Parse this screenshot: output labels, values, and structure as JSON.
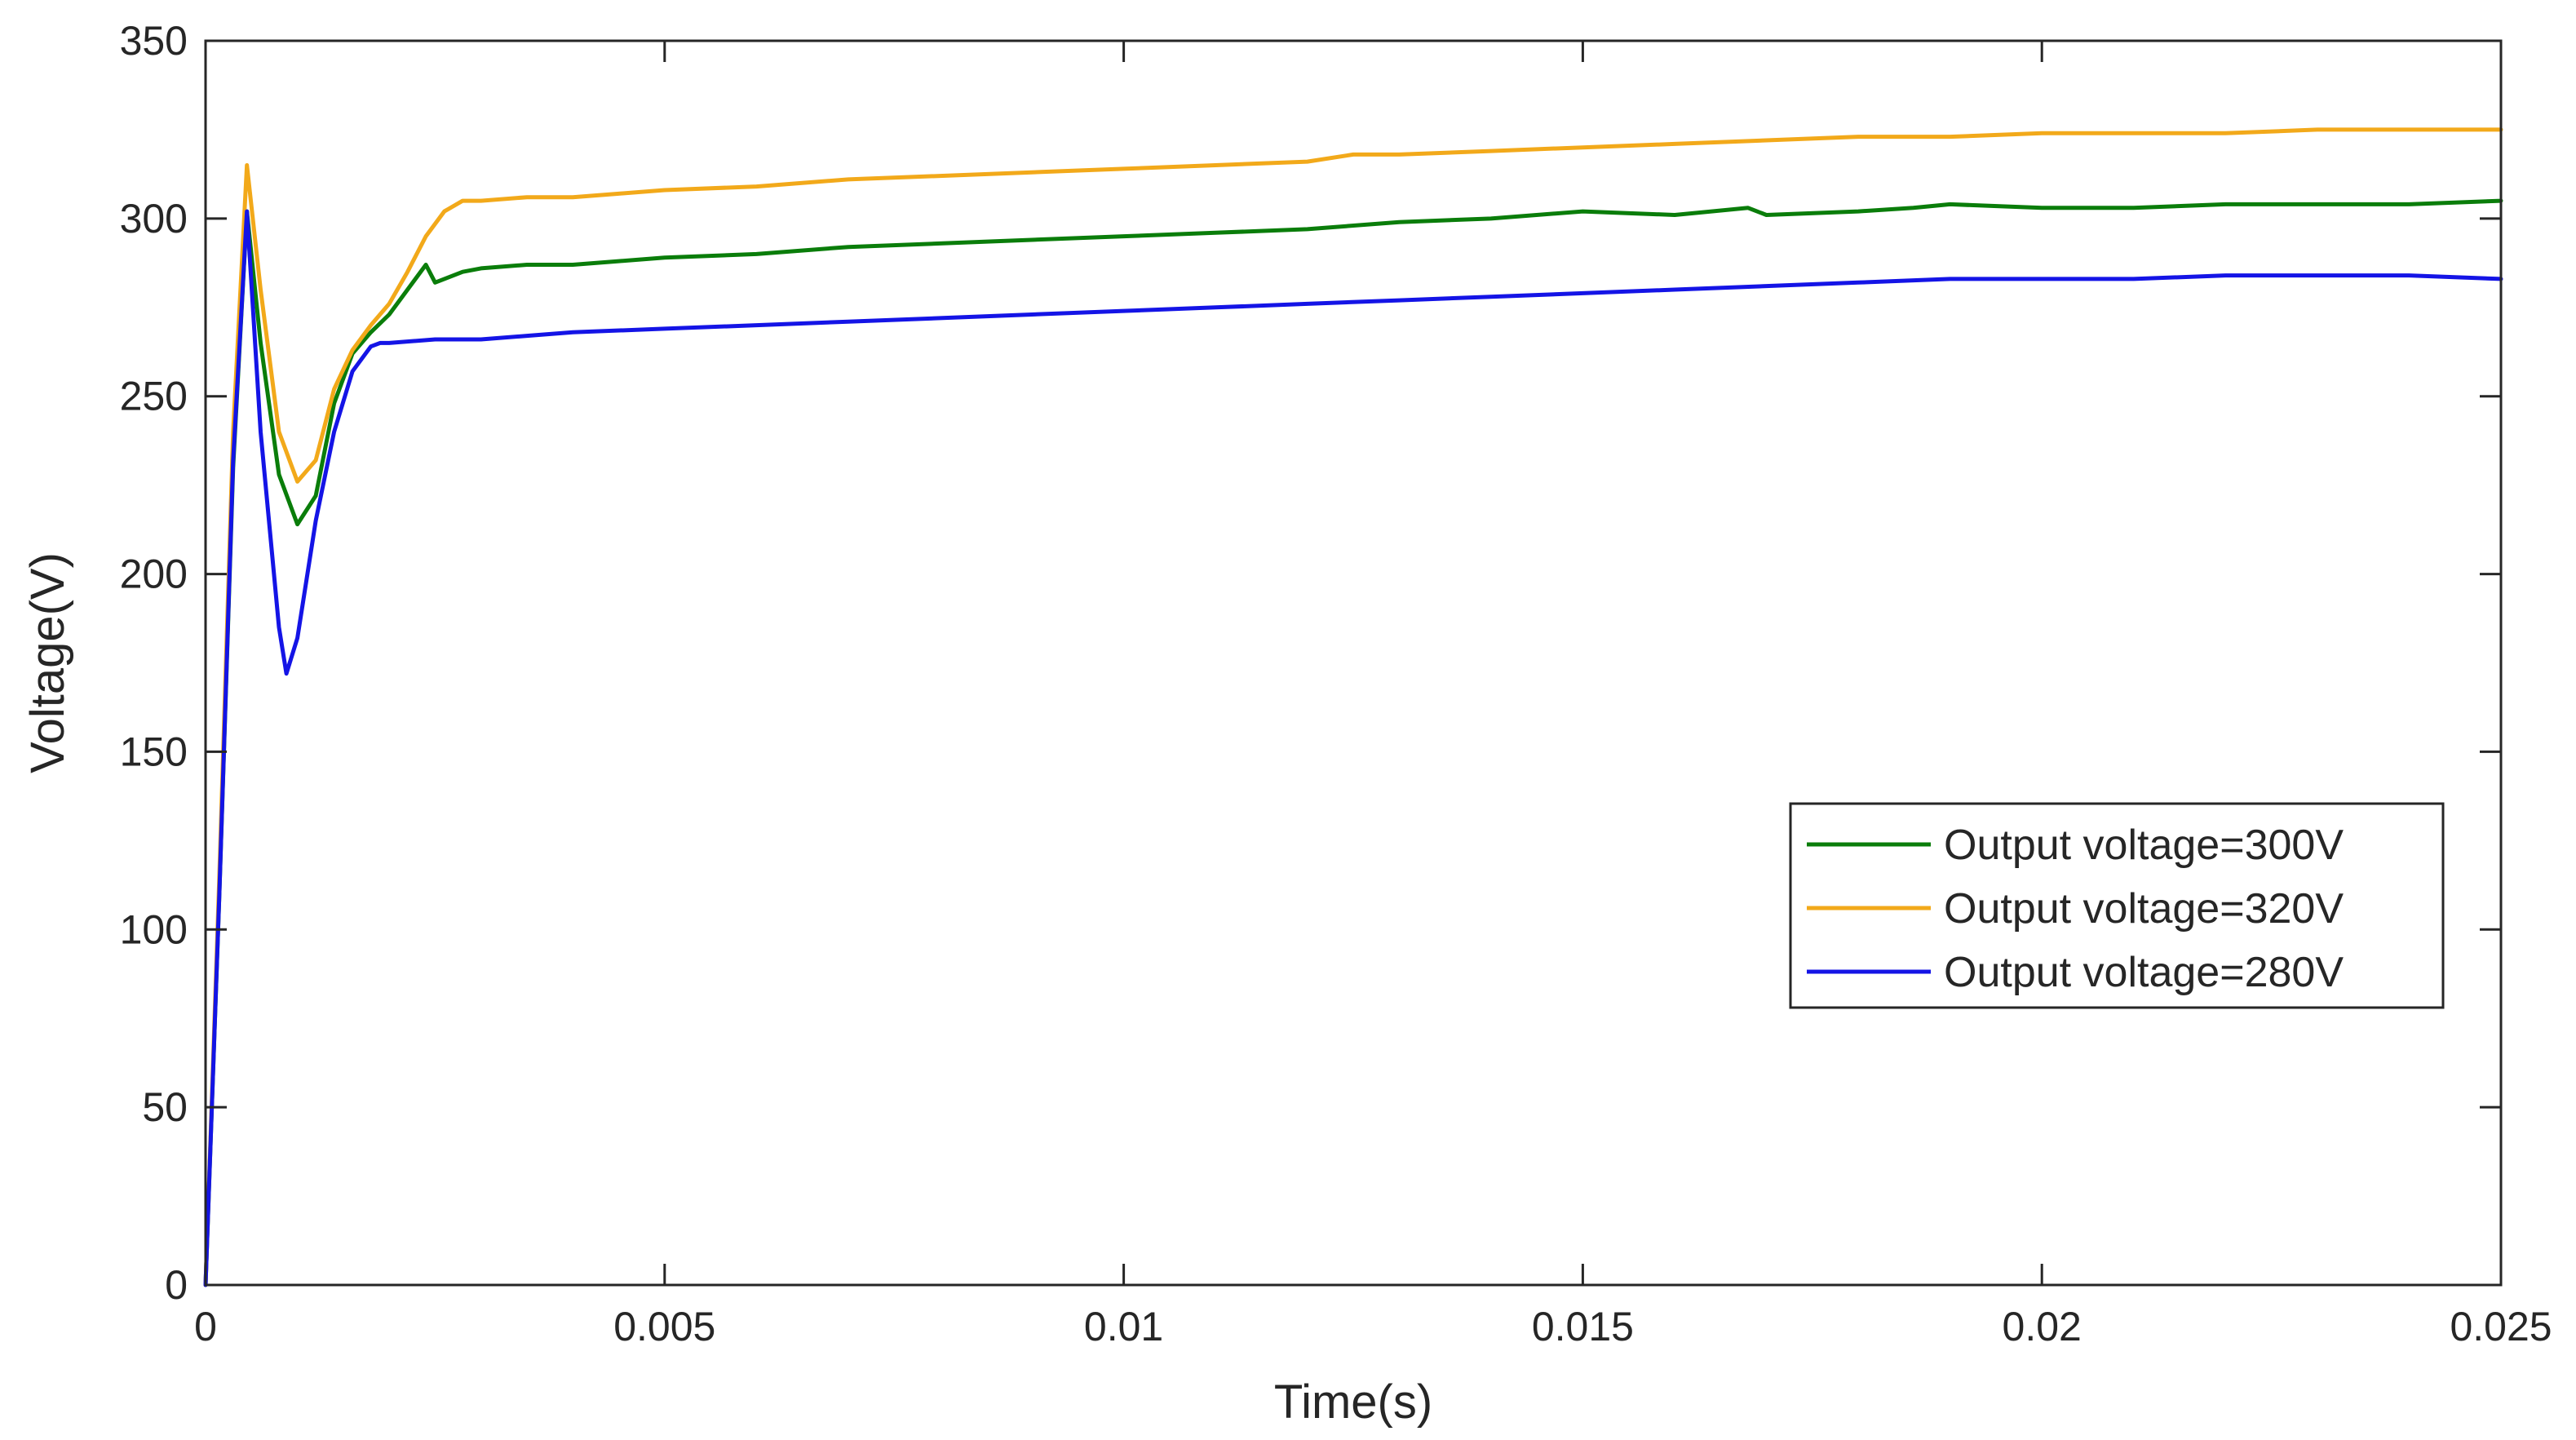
{
  "chart_data": {
    "type": "line",
    "title": "",
    "xlabel": "Time(s)",
    "ylabel": "Voltage(V)",
    "xlim": [
      0,
      0.025
    ],
    "ylim": [
      0,
      350
    ],
    "xticks": [
      0,
      0.005,
      0.01,
      0.015,
      0.02,
      0.025
    ],
    "xtick_labels": [
      "0",
      "0.005",
      "0.01",
      "0.015",
      "0.02",
      "0.025"
    ],
    "yticks": [
      0,
      50,
      100,
      150,
      200,
      250,
      300,
      350
    ],
    "ytick_labels": [
      "0",
      "50",
      "100",
      "150",
      "200",
      "250",
      "300",
      "350"
    ],
    "grid": false,
    "legend_position": "right",
    "series": [
      {
        "name": "Output voltage=300V",
        "color": "#0a7d0a",
        "x": [
          0,
          0.00015,
          0.0003,
          0.00045,
          0.0006,
          0.0008,
          0.001,
          0.0012,
          0.0014,
          0.0016,
          0.0018,
          0.002,
          0.0022,
          0.0024,
          0.0025,
          0.0026,
          0.0028,
          0.003,
          0.0035,
          0.004,
          0.0045,
          0.005,
          0.006,
          0.007,
          0.008,
          0.009,
          0.01,
          0.011,
          0.012,
          0.013,
          0.014,
          0.015,
          0.016,
          0.0168,
          0.017,
          0.018,
          0.0186,
          0.019,
          0.02,
          0.021,
          0.022,
          0.023,
          0.024,
          0.025
        ],
        "y": [
          0,
          110,
          230,
          302,
          265,
          228,
          214,
          222,
          248,
          262,
          268,
          273,
          280,
          287,
          282,
          283,
          285,
          286,
          287,
          287,
          288,
          289,
          290,
          292,
          293,
          294,
          295,
          296,
          297,
          299,
          300,
          302,
          301,
          303,
          301,
          302,
          303,
          304,
          303,
          303,
          304,
          304,
          304,
          305
        ]
      },
      {
        "name": "Output voltage=320V",
        "color": "#f2a91a",
        "x": [
          0,
          0.00015,
          0.0003,
          0.00045,
          0.0006,
          0.0008,
          0.001,
          0.0012,
          0.0014,
          0.0016,
          0.0018,
          0.002,
          0.0022,
          0.0024,
          0.0026,
          0.0028,
          0.003,
          0.0035,
          0.004,
          0.0045,
          0.005,
          0.006,
          0.007,
          0.008,
          0.009,
          0.01,
          0.011,
          0.012,
          0.0125,
          0.013,
          0.014,
          0.015,
          0.016,
          0.017,
          0.018,
          0.019,
          0.02,
          0.021,
          0.022,
          0.023,
          0.024,
          0.025
        ],
        "y": [
          0,
          115,
          240,
          315,
          280,
          240,
          226,
          232,
          252,
          263,
          270,
          276,
          285,
          295,
          302,
          305,
          305,
          306,
          306,
          307,
          308,
          309,
          311,
          312,
          313,
          314,
          315,
          316,
          318,
          318,
          319,
          320,
          321,
          322,
          323,
          323,
          324,
          324,
          324,
          325,
          325,
          325
        ]
      },
      {
        "name": "Output voltage=280V",
        "color": "#1414e6",
        "x": [
          0,
          0.00015,
          0.0003,
          0.00045,
          0.0006,
          0.0008,
          0.00088,
          0.001,
          0.0012,
          0.0014,
          0.0016,
          0.0018,
          0.0019,
          0.002,
          0.0025,
          0.003,
          0.0035,
          0.004,
          0.005,
          0.006,
          0.007,
          0.008,
          0.009,
          0.01,
          0.011,
          0.012,
          0.013,
          0.014,
          0.015,
          0.016,
          0.017,
          0.018,
          0.019,
          0.02,
          0.021,
          0.022,
          0.023,
          0.024,
          0.025
        ],
        "y": [
          0,
          110,
          232,
          302,
          240,
          185,
          172,
          182,
          215,
          240,
          257,
          264,
          265,
          265,
          266,
          266,
          267,
          268,
          269,
          270,
          271,
          272,
          273,
          274,
          275,
          276,
          277,
          278,
          279,
          280,
          281,
          282,
          283,
          283,
          283,
          284,
          284,
          284,
          283
        ]
      }
    ]
  }
}
